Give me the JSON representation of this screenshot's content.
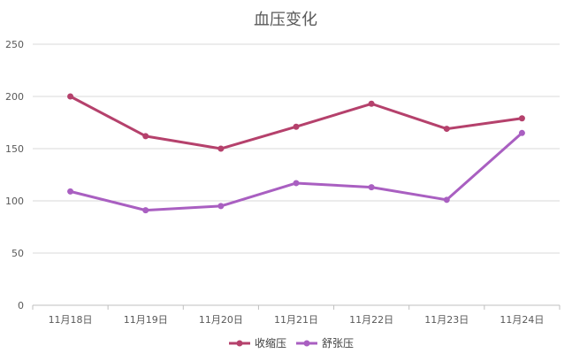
{
  "chart_data": {
    "type": "line",
    "title": "血压变化",
    "categories": [
      "11月18日",
      "11月19日",
      "11月20日",
      "11月21日",
      "11月22日",
      "11月23日",
      "11月24日"
    ],
    "series": [
      {
        "name": "收缩压",
        "color": "#b5416c",
        "values": [
          200,
          162,
          150,
          171,
          193,
          169,
          179
        ]
      },
      {
        "name": "舒张压",
        "color": "#a95fc1",
        "values": [
          109,
          91,
          95,
          117,
          113,
          101,
          165
        ]
      }
    ],
    "ylim": [
      0,
      250
    ],
    "yticks": [
      0,
      50,
      100,
      150,
      200,
      250
    ],
    "grid": true,
    "legend": "bottom"
  }
}
